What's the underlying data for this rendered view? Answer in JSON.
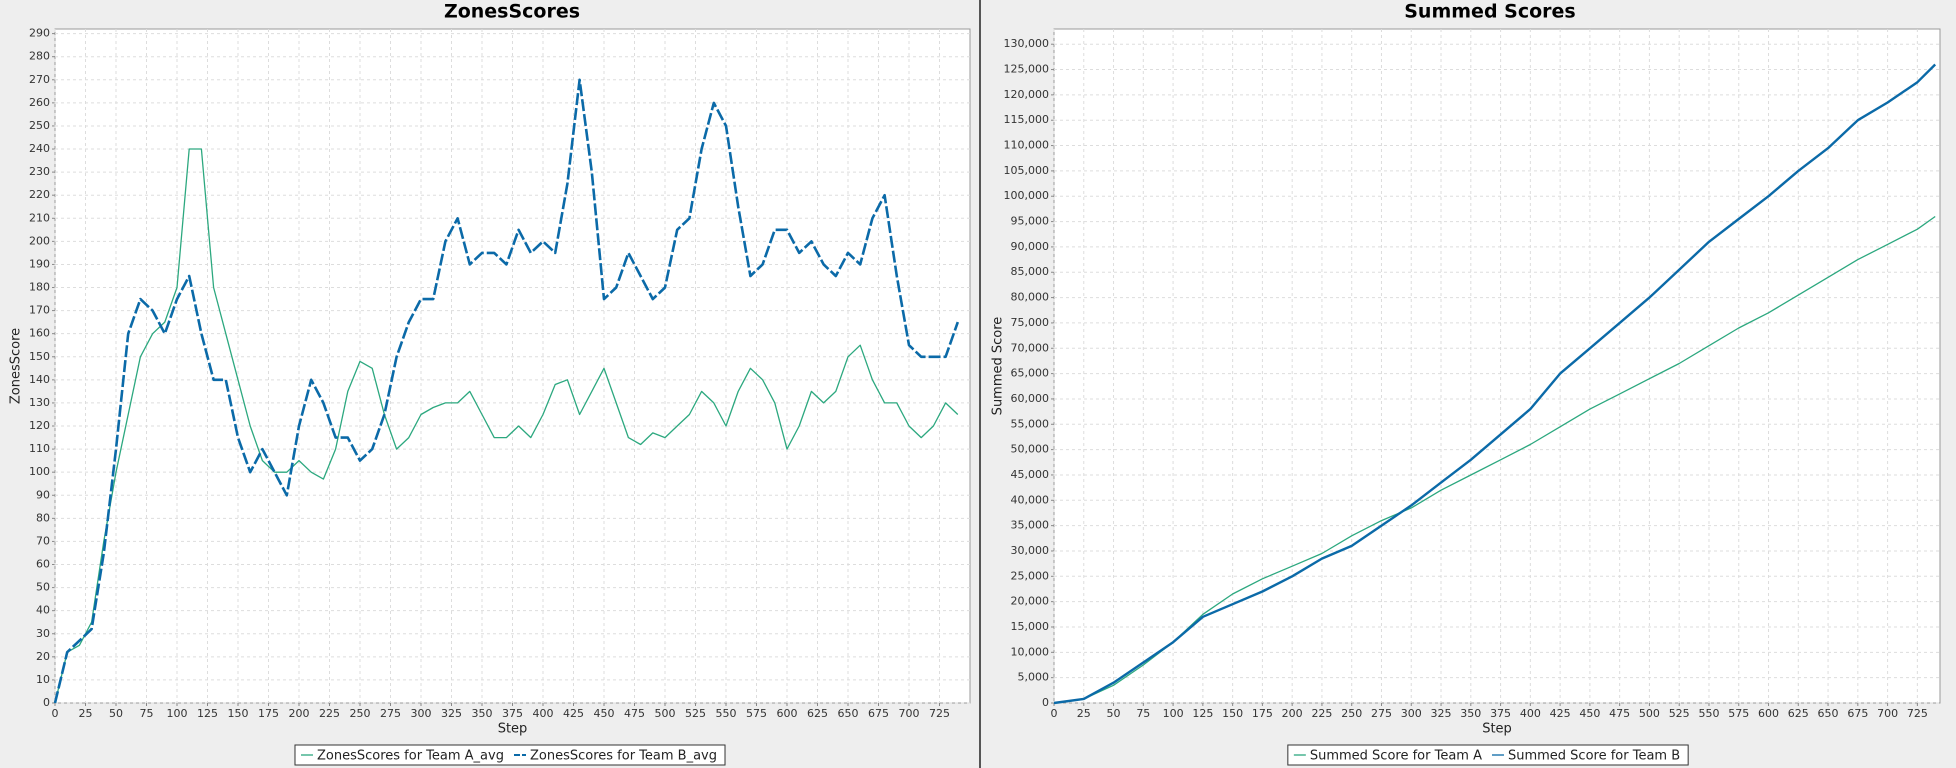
{
  "chart_data": [
    {
      "type": "line",
      "title": "ZonesScores",
      "x_label": "Step",
      "y_label": "ZonesScore",
      "grid": true,
      "legend_position": "bottom",
      "xlim": [
        0,
        750
      ],
      "xticks": [
        0,
        25,
        50,
        75,
        100,
        125,
        150,
        175,
        200,
        225,
        250,
        275,
        300,
        325,
        350,
        375,
        400,
        425,
        450,
        475,
        500,
        525,
        550,
        575,
        600,
        625,
        650,
        675,
        700,
        725
      ],
      "ylim": [
        0,
        292
      ],
      "yticks": [
        0,
        10,
        20,
        30,
        40,
        50,
        60,
        70,
        80,
        90,
        100,
        110,
        120,
        130,
        140,
        150,
        160,
        170,
        180,
        190,
        200,
        210,
        220,
        230,
        240,
        250,
        260,
        270,
        280,
        290
      ],
      "x": [
        0,
        10,
        20,
        30,
        40,
        50,
        60,
        70,
        80,
        90,
        100,
        110,
        120,
        130,
        140,
        150,
        160,
        170,
        180,
        190,
        200,
        210,
        220,
        230,
        240,
        250,
        260,
        270,
        280,
        290,
        300,
        310,
        320,
        330,
        340,
        350,
        360,
        370,
        380,
        390,
        400,
        410,
        420,
        430,
        440,
        450,
        460,
        470,
        480,
        490,
        500,
        510,
        520,
        530,
        540,
        550,
        560,
        570,
        580,
        590,
        600,
        610,
        620,
        630,
        640,
        650,
        660,
        670,
        680,
        690,
        700,
        710,
        720,
        730,
        740
      ],
      "series": [
        {
          "name": "ZonesScores for Team A_avg",
          "color": "#2ca87f",
          "dashed": false,
          "values": [
            0,
            22,
            25,
            35,
            70,
            100,
            125,
            150,
            160,
            165,
            180,
            240,
            240,
            180,
            160,
            140,
            120,
            105,
            100,
            100,
            105,
            100,
            97,
            110,
            135,
            148,
            145,
            125,
            110,
            115,
            125,
            128,
            130,
            130,
            135,
            125,
            115,
            115,
            120,
            115,
            125,
            138,
            140,
            125,
            135,
            145,
            130,
            115,
            112,
            117,
            115,
            120,
            125,
            135,
            130,
            120,
            135,
            145,
            140,
            130,
            110,
            120,
            135,
            130,
            135,
            150,
            155,
            140,
            130,
            130,
            120,
            115,
            120,
            130,
            125
          ]
        },
        {
          "name": "ZonesScores for Team B_avg",
          "color": "#0b6aa8",
          "dashed": true,
          "values": [
            0,
            22,
            27,
            32,
            65,
            110,
            160,
            175,
            170,
            160,
            175,
            185,
            160,
            140,
            140,
            115,
            100,
            110,
            100,
            90,
            120,
            140,
            130,
            115,
            115,
            105,
            110,
            125,
            150,
            165,
            175,
            175,
            200,
            210,
            190,
            195,
            195,
            190,
            205,
            195,
            200,
            195,
            225,
            270,
            230,
            175,
            180,
            195,
            185,
            175,
            180,
            205,
            210,
            240,
            260,
            250,
            215,
            185,
            190,
            205,
            205,
            195,
            200,
            190,
            185,
            195,
            190,
            210,
            220,
            185,
            155,
            150,
            150,
            150,
            165
          ]
        }
      ]
    },
    {
      "type": "line",
      "title": "Summed Scores",
      "x_label": "Step",
      "y_label": "Summed Score",
      "grid": true,
      "legend_position": "bottom",
      "xlim": [
        0,
        744
      ],
      "xticks": [
        0,
        25,
        50,
        75,
        100,
        125,
        150,
        175,
        200,
        225,
        250,
        275,
        300,
        325,
        350,
        375,
        400,
        425,
        450,
        475,
        500,
        525,
        550,
        575,
        600,
        625,
        650,
        675,
        700,
        725
      ],
      "ylim": [
        0,
        133000
      ],
      "yticks": [
        0,
        {
          "value": 5000,
          "label": "5,000"
        },
        {
          "value": 10000,
          "label": "10,000"
        },
        {
          "value": 15000,
          "label": "15,000"
        },
        {
          "value": 20000,
          "label": "20,000"
        },
        {
          "value": 25000,
          "label": "25,000"
        },
        {
          "value": 30000,
          "label": "30,000"
        },
        {
          "value": 35000,
          "label": "35,000"
        },
        {
          "value": 40000,
          "label": "40,000"
        },
        {
          "value": 45000,
          "label": "45,000"
        },
        {
          "value": 50000,
          "label": "50,000"
        },
        {
          "value": 55000,
          "label": "55,000"
        },
        {
          "value": 60000,
          "label": "60,000"
        },
        {
          "value": 65000,
          "label": "65,000"
        },
        {
          "value": 70000,
          "label": "70,000"
        },
        {
          "value": 75000,
          "label": "75,000"
        },
        {
          "value": 80000,
          "label": "80,000"
        },
        {
          "value": 85000,
          "label": "85,000"
        },
        {
          "value": 90000,
          "label": "90,000"
        },
        {
          "value": 95000,
          "label": "95,000"
        },
        {
          "value": 100000,
          "label": "100,000"
        },
        {
          "value": 105000,
          "label": "105,000"
        },
        {
          "value": 110000,
          "label": "110,000"
        },
        {
          "value": 115000,
          "label": "115,000"
        },
        {
          "value": 120000,
          "label": "120,000"
        },
        {
          "value": 125000,
          "label": "125,000"
        },
        {
          "value": 130000,
          "label": "130,000"
        }
      ],
      "x": [
        0,
        25,
        50,
        75,
        100,
        125,
        150,
        175,
        200,
        225,
        250,
        275,
        300,
        325,
        350,
        375,
        400,
        425,
        450,
        475,
        500,
        525,
        550,
        575,
        600,
        625,
        650,
        675,
        700,
        725,
        740
      ],
      "series": [
        {
          "name": "Summed Score for Team A",
          "color": "#2ca87f",
          "dashed": false,
          "values": [
            0,
            800,
            3500,
            7500,
            12000,
            17500,
            21500,
            24500,
            27000,
            29500,
            33000,
            36000,
            38500,
            42000,
            45000,
            48000,
            51000,
            54500,
            58000,
            61000,
            64000,
            67000,
            70500,
            74000,
            77000,
            80500,
            84000,
            87500,
            90500,
            93500,
            96000
          ]
        },
        {
          "name": "Summed Score for Team B",
          "color": "#0b6aa8",
          "dashed": false,
          "values": [
            0,
            800,
            4000,
            8000,
            12000,
            17000,
            19500,
            22000,
            25000,
            28500,
            31000,
            35000,
            39000,
            43500,
            48000,
            53000,
            58000,
            65000,
            70000,
            75000,
            80000,
            85500,
            91000,
            95500,
            100000,
            105000,
            109500,
            115000,
            118500,
            122500,
            126000
          ]
        }
      ]
    }
  ]
}
